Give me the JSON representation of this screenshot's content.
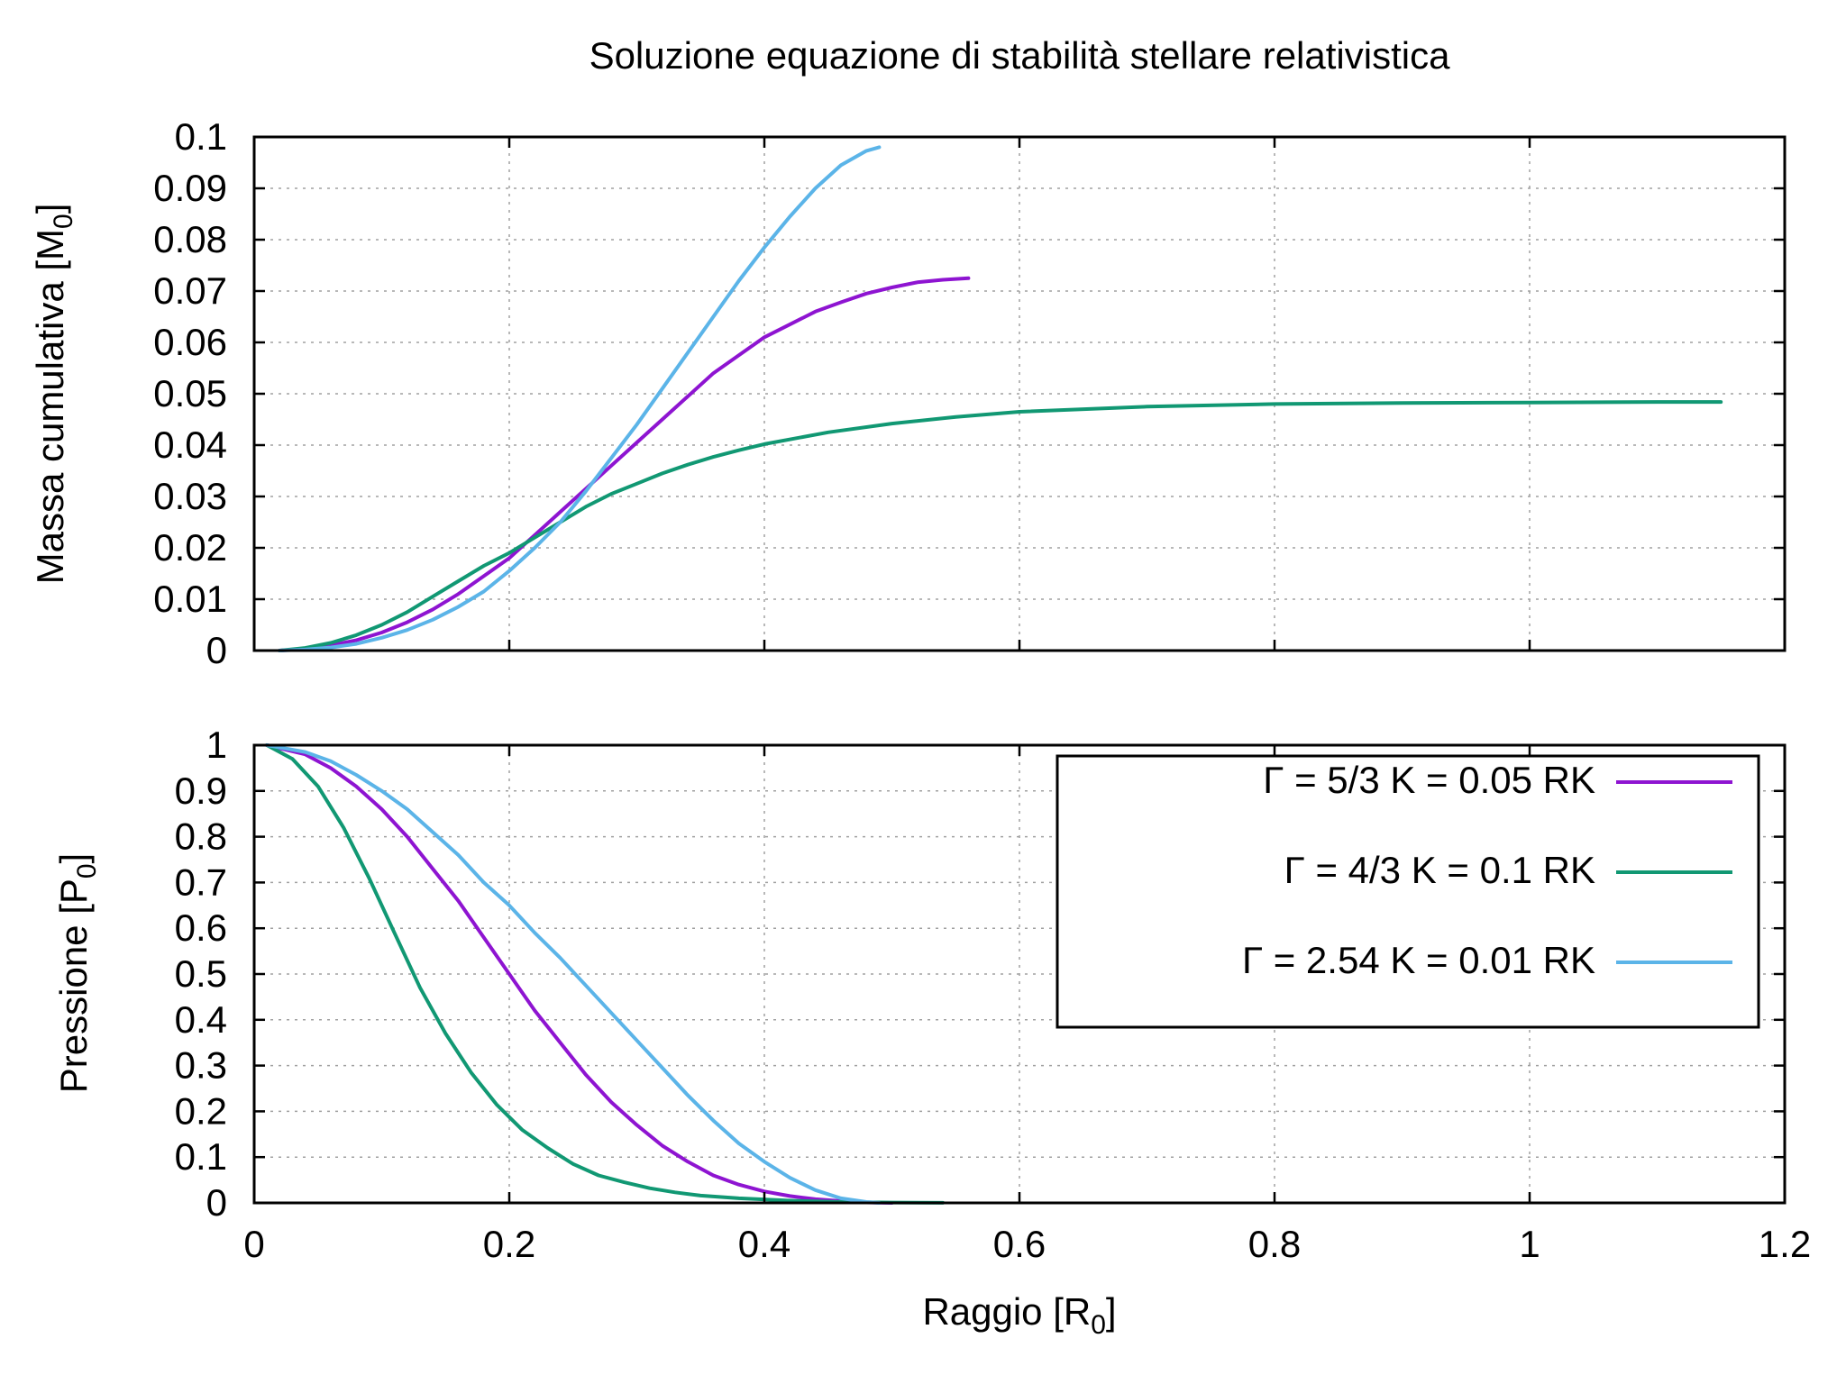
{
  "title": "Soluzione equazione di stabilità stellare relativistica",
  "colors": {
    "purple": "#8e14d1",
    "green": "#119873",
    "blue": "#5bb4e8"
  },
  "chart_data": [
    {
      "type": "line",
      "panel": "top",
      "ylabel_main": "Massa cumulativa [M",
      "ylabel_sub": "0",
      "ylabel_end": "]",
      "xlim": [
        0,
        1.2
      ],
      "ylim": [
        0,
        0.1
      ],
      "yticks": [
        "0",
        "0.01",
        "0.02",
        "0.03",
        "0.04",
        "0.05",
        "0.06",
        "0.07",
        "0.08",
        "0.09",
        "0.1"
      ],
      "yticks_values": [
        0,
        0.01,
        0.02,
        0.03,
        0.04,
        0.05,
        0.06,
        0.07,
        0.08,
        0.09,
        0.1
      ],
      "grid": true,
      "series": [
        {
          "color": "purple",
          "points": [
            [
              0.02,
              0
            ],
            [
              0.04,
              0.0003
            ],
            [
              0.06,
              0.001
            ],
            [
              0.08,
              0.002
            ],
            [
              0.1,
              0.0035
            ],
            [
              0.12,
              0.0055
            ],
            [
              0.14,
              0.008
            ],
            [
              0.16,
              0.011
            ],
            [
              0.18,
              0.0145
            ],
            [
              0.2,
              0.018
            ],
            [
              0.22,
              0.0225
            ],
            [
              0.24,
              0.027
            ],
            [
              0.26,
              0.0315
            ],
            [
              0.28,
              0.036
            ],
            [
              0.3,
              0.0405
            ],
            [
              0.32,
              0.045
            ],
            [
              0.34,
              0.0495
            ],
            [
              0.36,
              0.054
            ],
            [
              0.38,
              0.0575
            ],
            [
              0.4,
              0.061
            ],
            [
              0.42,
              0.0635
            ],
            [
              0.44,
              0.066
            ],
            [
              0.46,
              0.0678
            ],
            [
              0.48,
              0.0695
            ],
            [
              0.5,
              0.0707
            ],
            [
              0.52,
              0.0717
            ],
            [
              0.54,
              0.0722
            ],
            [
              0.56,
              0.0725
            ]
          ]
        },
        {
          "color": "green",
          "points": [
            [
              0.02,
              0
            ],
            [
              0.04,
              0.0005
            ],
            [
              0.06,
              0.0015
            ],
            [
              0.08,
              0.003
            ],
            [
              0.1,
              0.005
            ],
            [
              0.12,
              0.0075
            ],
            [
              0.14,
              0.0105
            ],
            [
              0.16,
              0.0135
            ],
            [
              0.18,
              0.0165
            ],
            [
              0.2,
              0.019
            ],
            [
              0.22,
              0.022
            ],
            [
              0.24,
              0.025
            ],
            [
              0.26,
              0.028
            ],
            [
              0.28,
              0.0305
            ],
            [
              0.3,
              0.0325
            ],
            [
              0.32,
              0.0345
            ],
            [
              0.34,
              0.0362
            ],
            [
              0.36,
              0.0377
            ],
            [
              0.38,
              0.039
            ],
            [
              0.4,
              0.0402
            ],
            [
              0.45,
              0.0425
            ],
            [
              0.5,
              0.0442
            ],
            [
              0.55,
              0.0455
            ],
            [
              0.6,
              0.0465
            ],
            [
              0.7,
              0.0475
            ],
            [
              0.8,
              0.048
            ],
            [
              0.9,
              0.0482
            ],
            [
              1.0,
              0.0483
            ],
            [
              1.1,
              0.0484
            ],
            [
              1.15,
              0.0484
            ]
          ]
        },
        {
          "color": "blue",
          "points": [
            [
              0.02,
              0
            ],
            [
              0.04,
              0.0002
            ],
            [
              0.06,
              0.0006
            ],
            [
              0.08,
              0.0013
            ],
            [
              0.1,
              0.0025
            ],
            [
              0.12,
              0.004
            ],
            [
              0.14,
              0.006
            ],
            [
              0.16,
              0.0085
            ],
            [
              0.18,
              0.0115
            ],
            [
              0.2,
              0.0155
            ],
            [
              0.22,
              0.02
            ],
            [
              0.24,
              0.025
            ],
            [
              0.26,
              0.031
            ],
            [
              0.28,
              0.0375
            ],
            [
              0.3,
              0.044
            ],
            [
              0.32,
              0.051
            ],
            [
              0.34,
              0.058
            ],
            [
              0.36,
              0.065
            ],
            [
              0.38,
              0.072
            ],
            [
              0.4,
              0.0785
            ],
            [
              0.42,
              0.0845
            ],
            [
              0.44,
              0.09
            ],
            [
              0.46,
              0.0945
            ],
            [
              0.48,
              0.0973
            ],
            [
              0.49,
              0.098
            ]
          ]
        }
      ]
    },
    {
      "type": "line",
      "panel": "bottom",
      "ylabel_main": "Pressione [P",
      "ylabel_sub": "0",
      "ylabel_end": "]",
      "xlabel_main": "Raggio [R",
      "xlabel_sub": "0",
      "xlabel_end": "]",
      "xlim": [
        0,
        1.2
      ],
      "ylim": [
        0,
        1
      ],
      "xticks": [
        "0",
        "0.2",
        "0.4",
        "0.6",
        "0.8",
        "1",
        "1.2"
      ],
      "xticks_values": [
        0,
        0.2,
        0.4,
        0.6,
        0.8,
        1.0,
        1.2
      ],
      "yticks": [
        "0",
        "0.1",
        "0.2",
        "0.3",
        "0.4",
        "0.5",
        "0.6",
        "0.7",
        "0.8",
        "0.9",
        "1"
      ],
      "yticks_values": [
        0,
        0.1,
        0.2,
        0.3,
        0.4,
        0.5,
        0.6,
        0.7,
        0.8,
        0.9,
        1.0
      ],
      "grid": true,
      "legend_position": "top-right",
      "series": [
        {
          "name": "Γ = 5/3 K = 0.05 RK",
          "color": "purple",
          "points": [
            [
              0.01,
              1
            ],
            [
              0.04,
              0.98
            ],
            [
              0.06,
              0.95
            ],
            [
              0.08,
              0.91
            ],
            [
              0.1,
              0.86
            ],
            [
              0.12,
              0.8
            ],
            [
              0.14,
              0.73
            ],
            [
              0.16,
              0.66
            ],
            [
              0.18,
              0.58
            ],
            [
              0.2,
              0.5
            ],
            [
              0.22,
              0.42
            ],
            [
              0.24,
              0.35
            ],
            [
              0.26,
              0.28
            ],
            [
              0.28,
              0.22
            ],
            [
              0.3,
              0.17
            ],
            [
              0.32,
              0.125
            ],
            [
              0.34,
              0.09
            ],
            [
              0.36,
              0.06
            ],
            [
              0.38,
              0.04
            ],
            [
              0.4,
              0.025
            ],
            [
              0.42,
              0.015
            ],
            [
              0.44,
              0.008
            ],
            [
              0.46,
              0.004
            ],
            [
              0.48,
              0.001
            ],
            [
              0.5,
              0
            ]
          ]
        },
        {
          "name": "Γ = 4/3 K = 0.1 RK",
          "color": "green",
          "points": [
            [
              0.01,
              1
            ],
            [
              0.03,
              0.97
            ],
            [
              0.05,
              0.91
            ],
            [
              0.07,
              0.82
            ],
            [
              0.09,
              0.71
            ],
            [
              0.11,
              0.59
            ],
            [
              0.13,
              0.47
            ],
            [
              0.15,
              0.37
            ],
            [
              0.17,
              0.285
            ],
            [
              0.19,
              0.215
            ],
            [
              0.21,
              0.16
            ],
            [
              0.23,
              0.12
            ],
            [
              0.25,
              0.085
            ],
            [
              0.27,
              0.06
            ],
            [
              0.29,
              0.045
            ],
            [
              0.31,
              0.032
            ],
            [
              0.33,
              0.023
            ],
            [
              0.35,
              0.016
            ],
            [
              0.38,
              0.01
            ],
            [
              0.42,
              0.005
            ],
            [
              0.46,
              0.002
            ],
            [
              0.5,
              0.0008
            ],
            [
              0.54,
              0.0002
            ]
          ]
        },
        {
          "name": "Γ = 2.54 K = 0.01 RK",
          "color": "blue",
          "points": [
            [
              0.01,
              1
            ],
            [
              0.04,
              0.985
            ],
            [
              0.06,
              0.965
            ],
            [
              0.08,
              0.935
            ],
            [
              0.1,
              0.9
            ],
            [
              0.12,
              0.86
            ],
            [
              0.14,
              0.81
            ],
            [
              0.16,
              0.76
            ],
            [
              0.18,
              0.7
            ],
            [
              0.2,
              0.65
            ],
            [
              0.22,
              0.59
            ],
            [
              0.24,
              0.535
            ],
            [
              0.26,
              0.475
            ],
            [
              0.28,
              0.415
            ],
            [
              0.3,
              0.355
            ],
            [
              0.32,
              0.295
            ],
            [
              0.34,
              0.235
            ],
            [
              0.36,
              0.18
            ],
            [
              0.38,
              0.13
            ],
            [
              0.4,
              0.09
            ],
            [
              0.42,
              0.055
            ],
            [
              0.44,
              0.028
            ],
            [
              0.46,
              0.01
            ],
            [
              0.48,
              0.002
            ],
            [
              0.49,
              0
            ]
          ]
        }
      ]
    }
  ]
}
